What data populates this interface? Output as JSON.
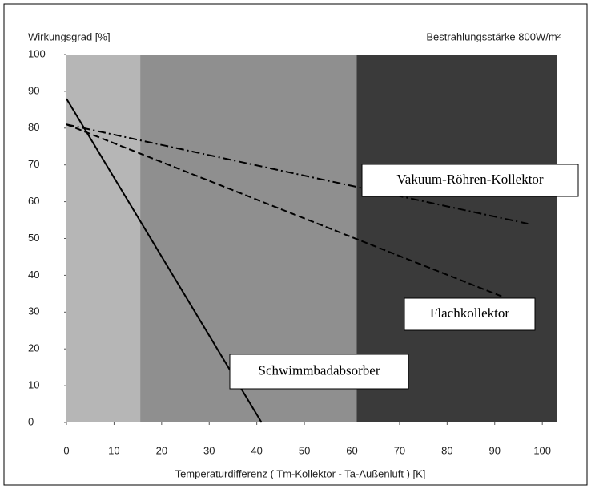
{
  "chart_data": {
    "type": "line",
    "y_label": "Wirkungsgrad [%]",
    "subtitle": "Bestrahlungsstärke 800W/m²",
    "x_label": "Temperaturdifferenz ( Tm-Kollektor - Ta-Außenluft ) [K]",
    "xlim": [
      0,
      103
    ],
    "ylim": [
      0,
      100
    ],
    "xticks": [
      0,
      10,
      20,
      30,
      40,
      50,
      60,
      70,
      80,
      90,
      100
    ],
    "yticks": [
      0,
      10,
      20,
      30,
      40,
      50,
      60,
      70,
      80,
      90,
      100
    ],
    "regions": [
      {
        "from": 0,
        "to": 15.5,
        "color": "#b6b6b6"
      },
      {
        "from": 15.5,
        "to": 61,
        "color": "#8f8f8f"
      },
      {
        "from": 61,
        "to": 103,
        "color": "#3a3a3a"
      }
    ],
    "series": [
      {
        "name": "Vakuum-Röhren-Kollektor",
        "color": "#000000",
        "dash": "10 4 2 4",
        "x": [
          0,
          97
        ],
        "values": [
          81,
          54
        ]
      },
      {
        "name": "Flachkollektor",
        "color": "#000000",
        "dash": "8 4",
        "x": [
          0,
          92
        ],
        "values": [
          81,
          34
        ]
      },
      {
        "name": "Schwimmbadabsorber",
        "color": "#000000",
        "dash": "none",
        "x": [
          0,
          41
        ],
        "values": [
          88,
          0
        ]
      }
    ]
  }
}
